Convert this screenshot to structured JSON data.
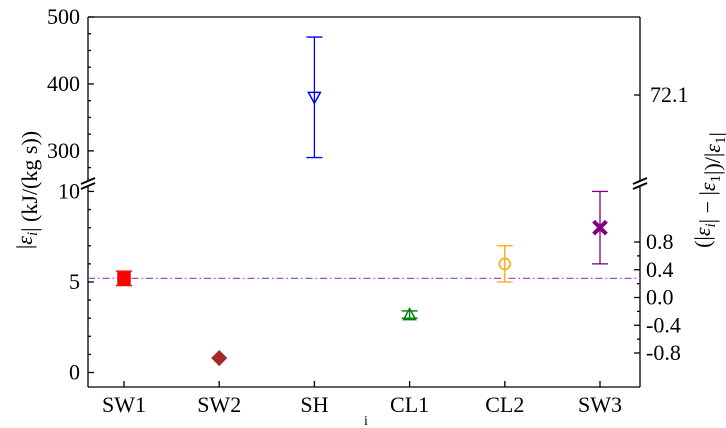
{
  "chart_data": {
    "type": "scatter",
    "title": "",
    "categories": [
      "SW1",
      "SW2",
      "SH",
      "CL1",
      "CL2",
      "SW3"
    ],
    "xlabel": "i",
    "ylabel_left": "|ε_i| (kJ/(kg s))",
    "ylabel_right": "(|ε_i| − |ε_1|)/|ε_1|",
    "broken_y_axis": true,
    "upper_panel": {
      "ylim": [
        255,
        500
      ],
      "left_ticks": [
        "300",
        "400",
        "500"
      ],
      "right_ticks": [
        "72.1"
      ]
    },
    "lower_panel": {
      "ylim": [
        -0.8,
        10.3
      ],
      "left_ticks": [
        "0",
        "5",
        "10"
      ],
      "right_ticks": [
        "-0.8",
        "-0.4",
        "0.0",
        "0.4",
        "0.8"
      ]
    },
    "reference_line": {
      "y": 5.2,
      "style": "dash-dot",
      "color": "#a64dc8"
    },
    "grid": false,
    "points": [
      {
        "category": "SW1",
        "y": 5.2,
        "ylow": 4.8,
        "yhigh": 5.6,
        "marker": "square",
        "filled": true,
        "color": "#ff0000"
      },
      {
        "category": "SW2",
        "y": 0.8,
        "ylow": 0.8,
        "yhigh": 0.8,
        "marker": "diamond",
        "filled": true,
        "color": "#a52a2a"
      },
      {
        "category": "SH",
        "y": 380,
        "ylow": 290,
        "yhigh": 470,
        "marker": "triangle-down",
        "filled": false,
        "color": "#0000ee"
      },
      {
        "category": "CL1",
        "y": 3.2,
        "ylow": 3.0,
        "yhigh": 3.4,
        "marker": "triangle-up",
        "filled": false,
        "color": "#008000"
      },
      {
        "category": "CL2",
        "y": 6.0,
        "ylow": 5.0,
        "yhigh": 7.0,
        "marker": "circle",
        "filled": false,
        "color": "#ffa500"
      },
      {
        "category": "SW3",
        "y": 8.0,
        "ylow": 6.0,
        "yhigh": 10.0,
        "marker": "x",
        "filled": true,
        "color": "#800080"
      }
    ]
  }
}
